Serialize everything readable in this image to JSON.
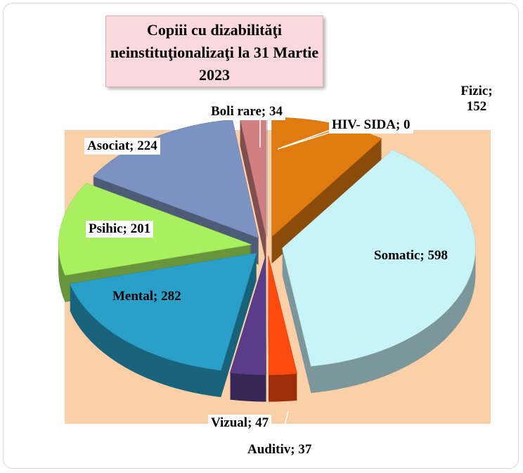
{
  "chart_data": {
    "type": "pie3d",
    "title": "Copiii cu dizabilităţi neinstituţionalizaţi la  31 Martie 2023",
    "categories": [
      "HIV- SIDA",
      "Fizic",
      "Somatic",
      "Auditiv",
      "Vizual",
      "Mental",
      "Psihic",
      "Asociat",
      "Boli rare"
    ],
    "values": [
      0,
      152,
      598,
      37,
      47,
      282,
      201,
      224,
      34
    ],
    "value_labels": [
      "HIV- SIDA; 0",
      "Fizic; 152",
      "Somatic; 598",
      "Auditiv; 37",
      "Vizual; 47",
      "Mental; 282",
      "Psihic; 201",
      "Asociat; 224",
      "Boli rare; 34"
    ],
    "colors": [
      "#7fb0e0",
      "#e07b10",
      "#c8f4f8",
      "#ff4a10",
      "#5a3d8a",
      "#2a9fc8",
      "#a8f060",
      "#7c92c0",
      "#d08080"
    ]
  }
}
